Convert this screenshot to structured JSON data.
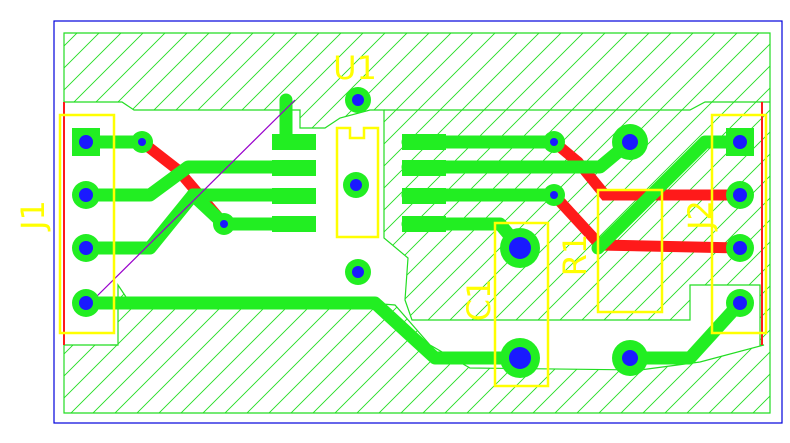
{
  "board": {
    "components": [
      {
        "ref": "J1"
      },
      {
        "ref": "J2"
      },
      {
        "ref": "U1"
      },
      {
        "ref": "C1"
      },
      {
        "ref": "R1"
      }
    ]
  },
  "colors": {
    "board_outline": "#0000dd",
    "copper_pour_hatch": "#22dd22",
    "top_copper": "#22ee22",
    "bottom_copper": "#ff1a1a",
    "pads": "#1a1aff",
    "silkscreen": "#ffff00",
    "ratsnest": "#9900cc"
  }
}
